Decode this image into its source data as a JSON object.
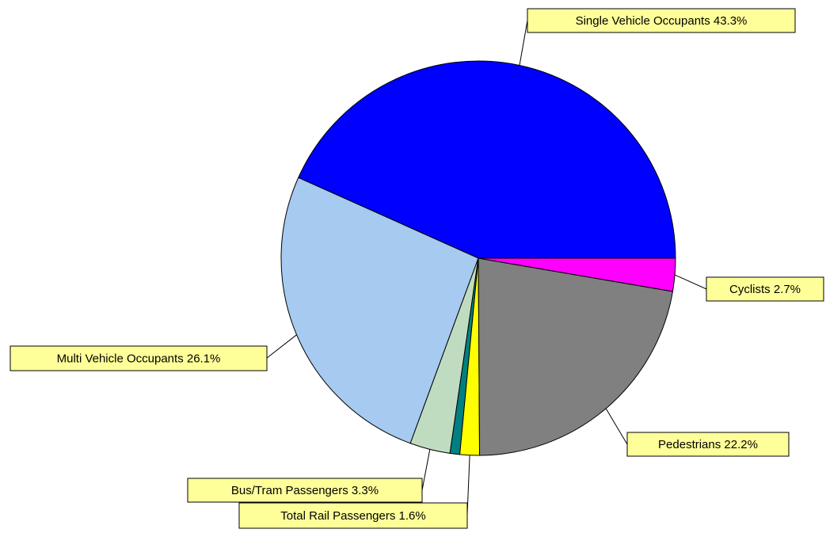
{
  "chart_data": {
    "type": "pie",
    "start_angle_deg": 0,
    "direction": "counterclockwise",
    "slices": [
      {
        "label": "Single Vehicle Occupants 43.3%",
        "name": "Single Vehicle Occupants",
        "value": 43.3,
        "color": "#0000ff"
      },
      {
        "label": "Multi Vehicle Occupants 26.1%",
        "name": "Multi Vehicle Occupants",
        "value": 26.1,
        "color": "#a6caf0"
      },
      {
        "label": "Bus/Tram Passengers 3.3%",
        "name": "Bus/Tram Passengers",
        "value": 3.3,
        "color": "#c0dcc0"
      },
      {
        "label": "",
        "name": "",
        "value": 0.8,
        "color": "#008080"
      },
      {
        "label": "Total Rail Passengers 1.6%",
        "name": "Total Rail Passengers",
        "value": 1.6,
        "color": "#ffff00"
      },
      {
        "label": "Pedestrians 22.2%",
        "name": "Pedestrians",
        "value": 22.2,
        "color": "#808080"
      },
      {
        "label": "Cyclists 2.7%",
        "name": "Cyclists",
        "value": 2.7,
        "color": "#ff00ff"
      }
    ],
    "label_style": {
      "background": "#ffff99",
      "border": "#000000"
    },
    "legend": "none"
  }
}
